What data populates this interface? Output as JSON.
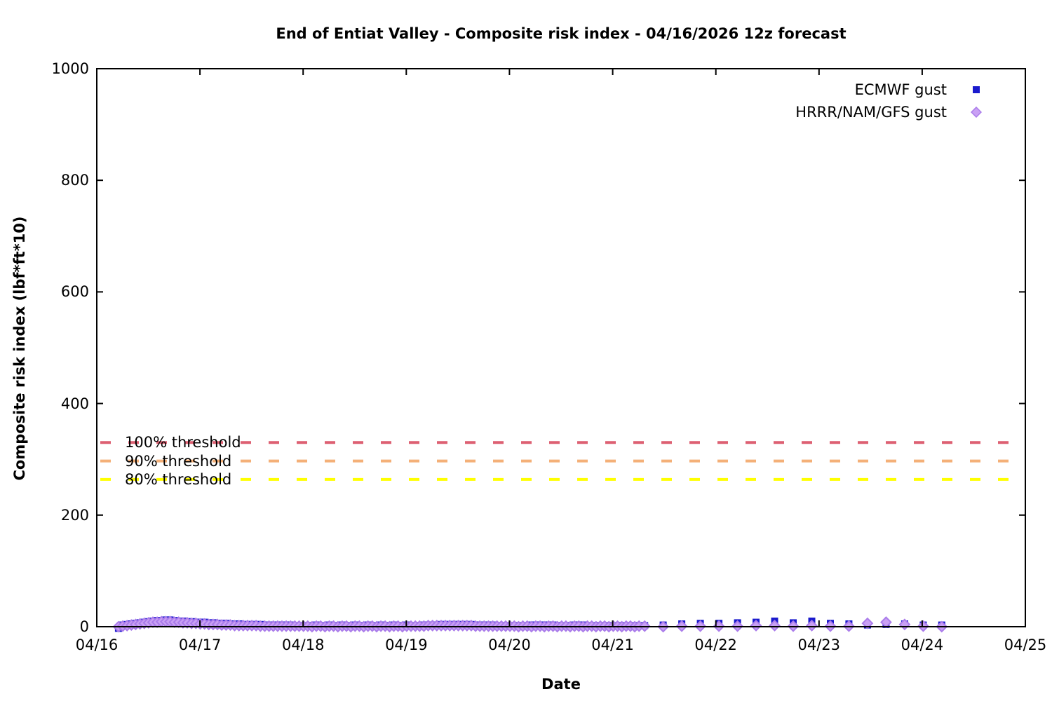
{
  "title": "End of Entiat Valley - Composite risk index - 04/16/2026 12z forecast",
  "chart_data": {
    "type": "scatter",
    "title": "End of Entiat Valley - Composite risk index - 04/16/2026 12z forecast",
    "xlabel": "Date",
    "ylabel": "Composite risk index (lbf*ft*10)",
    "x_tick_labels": [
      "04/16",
      "04/17",
      "04/18",
      "04/19",
      "04/20",
      "04/21",
      "04/22",
      "04/23",
      "04/24",
      "04/25"
    ],
    "x_range_days": [
      0,
      9
    ],
    "ylim": [
      0,
      1000
    ],
    "y_ticks": [
      0,
      200,
      400,
      600,
      800,
      1000
    ],
    "grid": "off",
    "legend_position": "top-right",
    "background": "#ffffff",
    "axis_color": "#000000",
    "thresholds": [
      {
        "label": "100% threshold",
        "value": 330,
        "color": "#dd6072",
        "style": "dashed"
      },
      {
        "label": "90% threshold",
        "value": 297,
        "color": "#f4b078",
        "style": "dashed"
      },
      {
        "label": "80% threshold",
        "value": 264,
        "color": "#ffff00",
        "style": "dashed"
      }
    ],
    "series": [
      {
        "name": "ECMWF gust",
        "marker": "square",
        "color": "#1a1acd",
        "dense": {
          "t_start": 0.21,
          "t_step": 0.0417,
          "values": [
            -3,
            3,
            4,
            5,
            6,
            7,
            8,
            9,
            10,
            11,
            11,
            12,
            12,
            11,
            10,
            10,
            9,
            9,
            8,
            8,
            8,
            7,
            7,
            6,
            6,
            6,
            5,
            5,
            5,
            4,
            4,
            4,
            4,
            4,
            3,
            3,
            3,
            3,
            3,
            3,
            3,
            2,
            2,
            2,
            2,
            2,
            3,
            2,
            2,
            3,
            2,
            2,
            3,
            2,
            2,
            3,
            2,
            2,
            3,
            2,
            2,
            3,
            2,
            2,
            3,
            2,
            2,
            3,
            2,
            2,
            2,
            3,
            3,
            3,
            3,
            4,
            4,
            4,
            4,
            4,
            4,
            4,
            4,
            3,
            3,
            3,
            3,
            3,
            2,
            2,
            2,
            2,
            2,
            2,
            2,
            2,
            3,
            3,
            3,
            3,
            3,
            3,
            2,
            2,
            2,
            2,
            3,
            3,
            3,
            2,
            2,
            2,
            2,
            2,
            2,
            2,
            2,
            2,
            2,
            2,
            2,
            2
          ]
        },
        "sparse": {
          "t": [
            5.31,
            5.49,
            5.67,
            5.85,
            6.03,
            6.21,
            6.39,
            6.57,
            6.75,
            6.93,
            7.11,
            7.29,
            7.47,
            7.65,
            7.83,
            8.01,
            8.19
          ],
          "values": [
            2,
            3,
            5,
            6,
            6,
            7,
            8,
            10,
            7,
            10,
            6,
            5,
            3,
            4,
            5,
            3,
            3
          ]
        }
      },
      {
        "name": "HRRR/NAM/GFS gust",
        "marker": "diamond",
        "color": "#c9a0f4",
        "edge_color": "#aa7cea",
        "dense": {
          "t_start": 0.21,
          "t_step": 0.0417,
          "values": [
            0,
            1,
            2,
            3,
            4,
            5,
            6,
            7,
            8,
            8,
            9,
            9,
            9,
            8,
            8,
            7,
            7,
            6,
            6,
            5,
            5,
            4,
            4,
            4,
            3,
            3,
            3,
            2,
            2,
            2,
            2,
            2,
            2,
            1,
            1,
            1,
            1,
            1,
            1,
            1,
            1,
            1,
            1,
            1,
            1,
            0,
            1,
            1,
            0,
            1,
            1,
            0,
            1,
            1,
            0,
            1,
            1,
            0,
            1,
            1,
            0,
            1,
            1,
            0,
            1,
            1,
            0,
            1,
            1,
            1,
            1,
            1,
            2,
            2,
            2,
            2,
            2,
            2,
            2,
            2,
            2,
            2,
            2,
            1,
            1,
            1,
            1,
            1,
            1,
            1,
            1,
            1,
            1,
            0,
            1,
            1,
            0,
            1,
            1,
            0,
            1,
            1,
            0,
            1,
            1,
            0,
            1,
            1,
            0,
            1,
            1,
            0,
            1,
            1,
            0,
            1,
            1,
            0,
            1,
            1,
            0,
            1
          ]
        },
        "sparse": {
          "t": [
            5.31,
            5.49,
            5.67,
            5.85,
            6.03,
            6.21,
            6.39,
            6.57,
            6.75,
            6.93,
            7.11,
            7.29,
            7.47,
            7.65,
            7.83,
            8.01,
            8.19
          ],
          "values": [
            1,
            0,
            1,
            1,
            1,
            1,
            2,
            2,
            1,
            2,
            1,
            1,
            6,
            8,
            4,
            1,
            0
          ]
        }
      }
    ]
  }
}
